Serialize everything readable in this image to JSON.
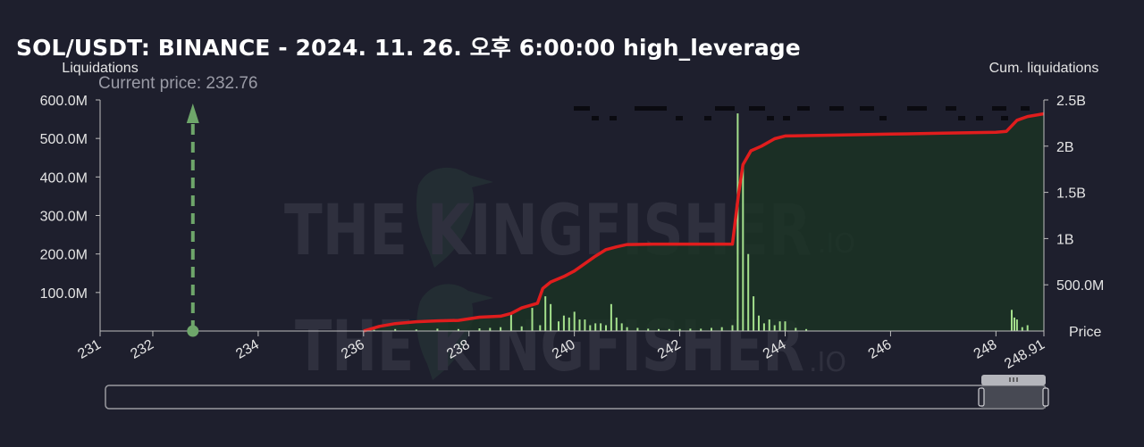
{
  "title": "SOL/USDT: BINANCE - 2024. 11. 26. 오후 6:00:00 high_leverage",
  "watermark": {
    "brand": "THE KINGFISHER",
    "suffix": ".IO"
  },
  "colors": {
    "background": "#1e1f2d",
    "cum_line": "#e01d1d",
    "cum_fill": "#1b3325",
    "bars": "#a4e08c",
    "current_price": "#6ea66a",
    "text": "#e4e4e4"
  },
  "chart_data": {
    "type": "bar",
    "xlabel": "Price",
    "ylabel_left": "Liquidations",
    "ylabel_right": "Cum. liquidations",
    "current_price_label": "Current price: 232.76",
    "current_price": 232.76,
    "xlim": [
      231,
      248.91
    ],
    "ylim_left": [
      0,
      600000000
    ],
    "ylim_right": [
      0,
      2500000000
    ],
    "x_ticks": [
      "231",
      "232",
      "234",
      "236",
      "238",
      "240",
      "242",
      "244",
      "246",
      "248",
      "248.91"
    ],
    "x_tick_values": [
      231,
      232,
      234,
      236,
      238,
      240,
      242,
      244,
      246,
      248,
      248.91
    ],
    "y_ticks_left": [
      "100.0M",
      "200.0M",
      "300.0M",
      "400.0M",
      "500.0M",
      "600.0M"
    ],
    "y_ticks_right": [
      "500.0M",
      "1B",
      "1.5B",
      "2B",
      "2.5B"
    ],
    "series": [
      {
        "name": "Liquidations",
        "type": "bar",
        "x": [
          236.2,
          236.6,
          237.0,
          237.4,
          237.8,
          238.2,
          238.4,
          238.6,
          238.8,
          239.0,
          239.2,
          239.35,
          239.45,
          239.55,
          239.7,
          239.8,
          239.9,
          240.0,
          240.1,
          240.2,
          240.3,
          240.4,
          240.5,
          240.6,
          240.7,
          240.8,
          240.9,
          241.0,
          241.2,
          241.4,
          241.6,
          241.8,
          242.0,
          242.2,
          242.4,
          242.6,
          242.8,
          243.0,
          243.1,
          243.2,
          243.3,
          243.4,
          243.5,
          243.6,
          243.7,
          243.8,
          243.9,
          244.0,
          244.2,
          244.4,
          248.3,
          248.35,
          248.4,
          248.5,
          248.6
        ],
        "values": [
          3000000,
          5000000,
          4000000,
          6000000,
          5000000,
          7000000,
          8000000,
          10000000,
          45000000,
          12000000,
          60000000,
          15000000,
          90000000,
          70000000,
          25000000,
          40000000,
          35000000,
          50000000,
          30000000,
          30000000,
          15000000,
          20000000,
          20000000,
          15000000,
          70000000,
          35000000,
          20000000,
          10000000,
          8000000,
          6000000,
          5000000,
          5000000,
          5000000,
          6000000,
          6000000,
          8000000,
          10000000,
          15000000,
          565000000,
          430000000,
          200000000,
          90000000,
          40000000,
          20000000,
          30000000,
          15000000,
          25000000,
          25000000,
          8000000,
          5000000,
          55000000,
          35000000,
          30000000,
          10000000,
          15000000
        ]
      },
      {
        "name": "Cum. liquidations",
        "type": "line",
        "x": [
          236.0,
          236.3,
          236.6,
          237.0,
          237.4,
          237.8,
          238.2,
          238.6,
          238.8,
          239.0,
          239.3,
          239.4,
          239.55,
          239.8,
          240.0,
          240.2,
          240.4,
          240.6,
          240.8,
          241.0,
          241.5,
          242.0,
          242.5,
          243.0,
          243.12,
          243.2,
          243.35,
          243.55,
          243.8,
          244.0,
          244.5,
          245.0,
          246.0,
          247.0,
          247.5,
          248.0,
          248.2,
          248.4,
          248.6,
          248.8,
          248.91
        ],
        "values": [
          0,
          50000000,
          80000000,
          100000000,
          110000000,
          115000000,
          150000000,
          160000000,
          190000000,
          250000000,
          300000000,
          460000000,
          530000000,
          590000000,
          650000000,
          730000000,
          810000000,
          880000000,
          910000000,
          935000000,
          940000000,
          940000000,
          940000000,
          940000000,
          1500000000,
          1800000000,
          1950000000,
          2000000000,
          2080000000,
          2110000000,
          2115000000,
          2120000000,
          2130000000,
          2140000000,
          2145000000,
          2150000000,
          2160000000,
          2280000000,
          2320000000,
          2340000000,
          2350000000
        ]
      }
    ],
    "grid": false,
    "legend": "none"
  }
}
